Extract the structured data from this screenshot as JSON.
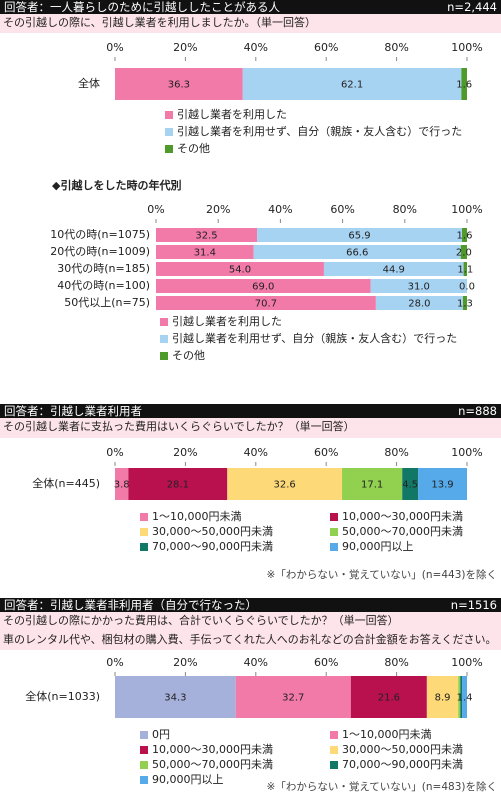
{
  "sections": [
    {
      "respondent": "回答者：一人暮らしのために引越ししたことがある人",
      "n": "n=2,444",
      "question": [
        "その引越しの際に、引越し業者を利用しましたか。（単一回答）"
      ]
    },
    {
      "respondent": "回答者：引越し業者利用者",
      "n": "n=888",
      "question": [
        "その引越し業者に支払った費用はいくらぐらいでしたか？（単一回答）"
      ]
    },
    {
      "respondent": "回答者：引越し業者非利用者（自分で行なった）",
      "n": "n=1516",
      "question": [
        "その引越しの際にかかった費用は、合計でいくらぐらいでしたか？（単一回答）",
        "車のレンタル代や、梱包材の購入費、手伝ってくれた人へのお礼などの合計金額をお答えください。"
      ]
    }
  ],
  "chart_data": [
    {
      "type": "stacked_bar_h",
      "categories": [
        "全体"
      ],
      "xlim": [
        0,
        100
      ],
      "xticks": [
        {
          "value": 0,
          "label": "0%"
        },
        {
          "value": 20,
          "label": "20%"
        },
        {
          "value": 40,
          "label": "40%"
        },
        {
          "value": 60,
          "label": "60%"
        },
        {
          "value": 80,
          "label": "80%"
        },
        {
          "value": 100,
          "label": "100%"
        }
      ],
      "series": [
        {
          "name": "引越し業者を利用した",
          "color": "#f27aa8",
          "values": [
            36.3
          ],
          "value_labels": [
            "36.3"
          ]
        },
        {
          "name": "引越し業者を利用せず、自分（親族・友人含む）で行った",
          "color": "#a7d3f3",
          "values": [
            62.1
          ],
          "value_labels": [
            "62.1"
          ]
        },
        {
          "name": "その他",
          "color": "#4e9a2b",
          "values": [
            1.6
          ],
          "value_labels": [
            "1.6"
          ]
        }
      ]
    },
    {
      "type": "stacked_bar_h",
      "title": "◆引越しをした時の年代別",
      "categories": [
        "10代の時(n=1075)",
        "20代の時(n=1009)",
        "30代の時(n=185)",
        "40代の時(n=100)",
        "50代以上(n=75)"
      ],
      "xlim": [
        0,
        100
      ],
      "xticks": [
        {
          "value": 0,
          "label": "0%"
        },
        {
          "value": 20,
          "label": "20%"
        },
        {
          "value": 40,
          "label": "40%"
        },
        {
          "value": 60,
          "label": "60%"
        },
        {
          "value": 80,
          "label": "80%"
        },
        {
          "value": 100,
          "label": "100%"
        }
      ],
      "series": [
        {
          "name": "引越し業者を利用した",
          "color": "#f27aa8",
          "values": [
            32.5,
            31.4,
            54,
            69,
            70.7
          ],
          "value_labels": [
            "32.5",
            "31.4",
            "54.0",
            "69.0",
            "70.7"
          ]
        },
        {
          "name": "引越し業者を利用せず、自分（親族・友人含む）で行った",
          "color": "#a7d3f3",
          "values": [
            65.9,
            66.6,
            44.9,
            31,
            28
          ],
          "value_labels": [
            "65.9",
            "66.6",
            "44.9",
            "31.0",
            "28.0"
          ]
        },
        {
          "name": "その他",
          "color": "#4e9a2b",
          "values": [
            1.6,
            2,
            1.1,
            0,
            1.3
          ],
          "value_labels": [
            "1.6",
            "2.0",
            "1.1",
            "0.0",
            "1.3"
          ]
        }
      ]
    },
    {
      "type": "stacked_bar_h",
      "categories": [
        "全体(n=445)"
      ],
      "xlim": [
        0,
        100
      ],
      "xticks": [
        {
          "value": 0,
          "label": "0%"
        },
        {
          "value": 20,
          "label": "20%"
        },
        {
          "value": 40,
          "label": "40%"
        },
        {
          "value": 60,
          "label": "60%"
        },
        {
          "value": 80,
          "label": "80%"
        },
        {
          "value": 100,
          "label": "100%"
        }
      ],
      "note": "※「わからない・覚えていない」(n=443)を除く",
      "series": [
        {
          "name": "1～10,000円未満",
          "color": "#f27aa8",
          "values": [
            3.8
          ],
          "value_labels": [
            "3.8"
          ]
        },
        {
          "name": "10,000～30,000円未満",
          "color": "#b8114d",
          "values": [
            28.1
          ],
          "value_labels": [
            "28.1"
          ]
        },
        {
          "name": "30,000～50,000円未満",
          "color": "#fdd978",
          "values": [
            32.6
          ],
          "value_labels": [
            "32.6"
          ]
        },
        {
          "name": "50,000～70,000円未満",
          "color": "#92d050",
          "values": [
            17.1
          ],
          "value_labels": [
            "17.1"
          ]
        },
        {
          "name": "70,000～90,000円未満",
          "color": "#127866",
          "values": [
            4.5
          ],
          "value_labels": [
            "4.5"
          ]
        },
        {
          "name": "90,000円以上",
          "color": "#56aaea",
          "values": [
            13.9
          ],
          "value_labels": [
            "13.9"
          ]
        }
      ]
    },
    {
      "type": "stacked_bar_h",
      "categories": [
        "全体(n=1033)"
      ],
      "xlim": [
        0,
        100
      ],
      "xticks": [
        {
          "value": 0,
          "label": "0%"
        },
        {
          "value": 20,
          "label": "20%"
        },
        {
          "value": 40,
          "label": "40%"
        },
        {
          "value": 60,
          "label": "60%"
        },
        {
          "value": 80,
          "label": "80%"
        },
        {
          "value": 100,
          "label": "100%"
        }
      ],
      "note": "※「わからない・覚えていない」(n=483)を除く",
      "series": [
        {
          "name": "0円",
          "color": "#a5b0db",
          "values": [
            34.3
          ],
          "value_labels": [
            "34.3"
          ]
        },
        {
          "name": "1～10,000円未満",
          "color": "#f27aa8",
          "values": [
            32.7
          ],
          "value_labels": [
            "32.7"
          ]
        },
        {
          "name": "10,000～30,000円未満",
          "color": "#b8114d",
          "values": [
            21.6
          ],
          "value_labels": [
            "21.6"
          ]
        },
        {
          "name": "30,000～50,000円未満",
          "color": "#fdd978",
          "values": [
            8.9
          ],
          "value_labels": [
            "8.9"
          ]
        },
        {
          "name": "50,000～70,000円未満",
          "color": "#92d050",
          "values": [
            0.6
          ],
          "value_labels": [
            null
          ]
        },
        {
          "name": "70,000～90,000円未満",
          "color": "#127866",
          "values": [
            0.5
          ],
          "value_labels": [
            null
          ]
        },
        {
          "name": "90,000円以上",
          "color": "#56aaea",
          "values": [
            1.4
          ],
          "value_labels": [
            "1.4"
          ]
        }
      ]
    }
  ]
}
